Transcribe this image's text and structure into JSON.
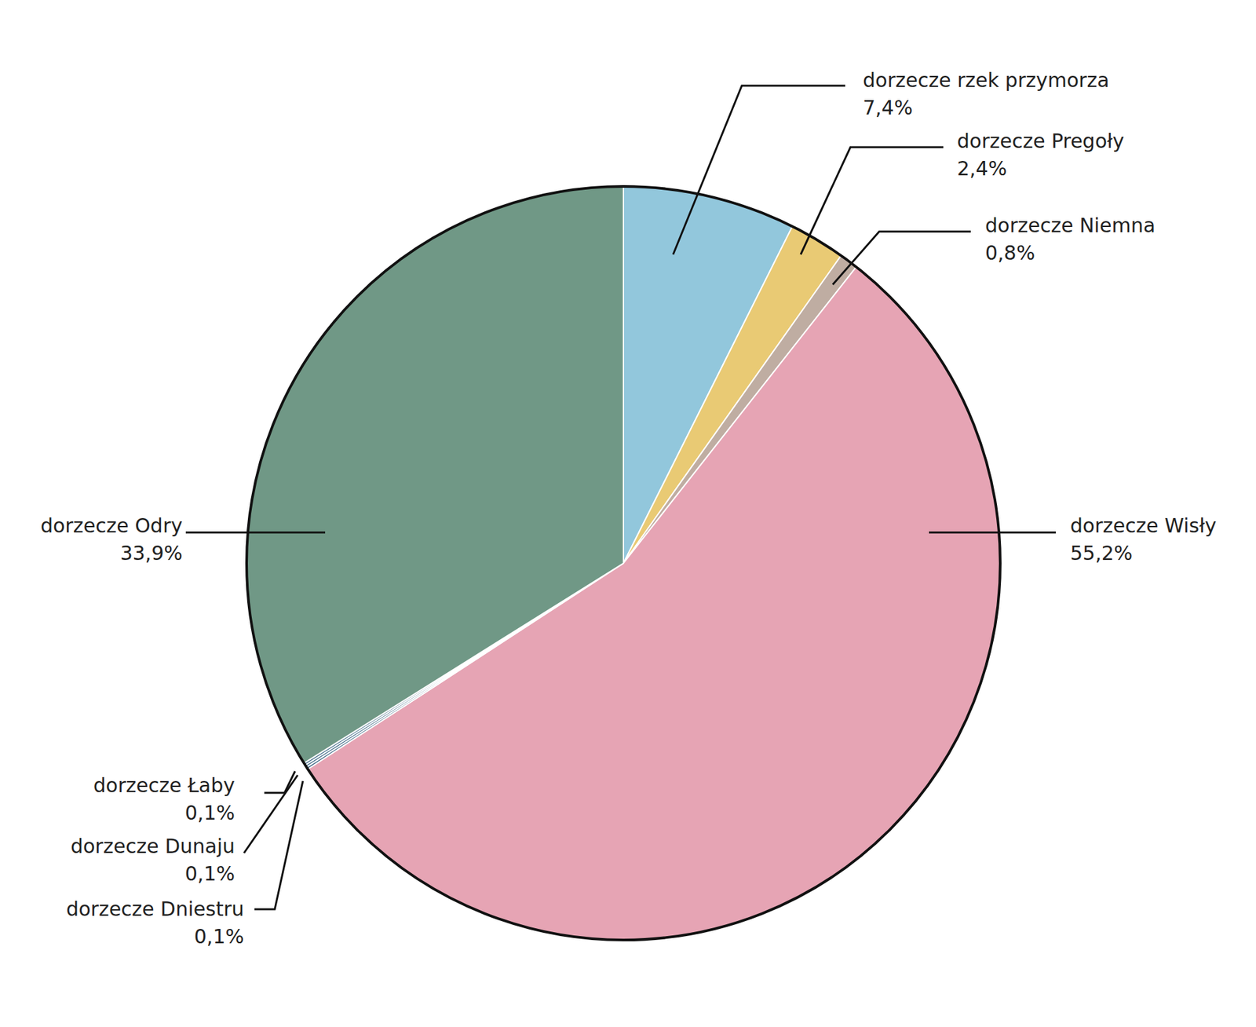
{
  "chart_data": {
    "type": "pie",
    "categories": [
      "dorzecze rzek przymorza",
      "dorzecze Pregoły",
      "dorzecze Niemna",
      "dorzecze Wisły",
      "dorzecze Dniestru",
      "dorzecze Dunaju",
      "dorzecze Łaby",
      "dorzecze Odry"
    ],
    "values": [
      7.4,
      2.4,
      0.8,
      55.2,
      0.1,
      0.1,
      0.1,
      33.9
    ],
    "value_labels": [
      "7,4%",
      "2,4%",
      "0,8%",
      "55,2%",
      "0,1%",
      "0,1%",
      "0,1%",
      "33,9%"
    ],
    "colors": [
      "#92c7dc",
      "#e9ca74",
      "#bfada2",
      "#e6a4b4",
      "#456e8a",
      "#456e8a",
      "#456e8a",
      "#709886"
    ],
    "data_labels": true
  }
}
